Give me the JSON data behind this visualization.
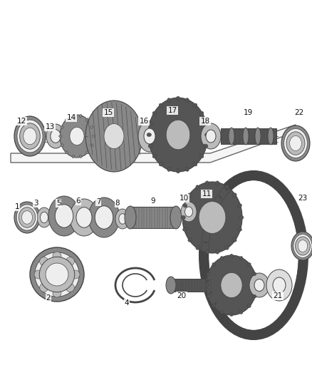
{
  "bg_color": "#ffffff",
  "lc": "#444444",
  "gray_dark": "#555555",
  "gray_mid": "#888888",
  "gray_light": "#bbbbbb",
  "gray_vlight": "#dddddd",
  "gray_white": "#eeeeee"
}
